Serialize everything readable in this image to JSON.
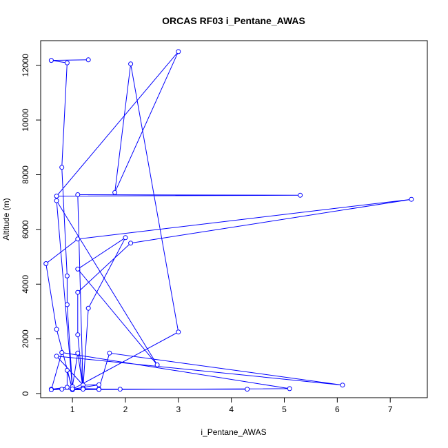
{
  "chart_data": {
    "type": "line",
    "title": "ORCAS RF03 i_Pentane_AWAS",
    "xlabel": "i_Pentane_AWAS",
    "ylabel": "Altitude (m)",
    "xlim": [
      0.4,
      7.7
    ],
    "ylim": [
      -150,
      12900
    ],
    "xticks": [
      1,
      2,
      3,
      4,
      5,
      6,
      7
    ],
    "xtick_labels": [
      "1",
      "2",
      "3",
      "4",
      "5",
      "6",
      "7"
    ],
    "yticks": [
      0,
      2000,
      4000,
      6000,
      8000,
      10000,
      12000
    ],
    "ytick_labels": [
      "0",
      "2000",
      "4000",
      "6000",
      "8000",
      "10000",
      "12000"
    ],
    "grid": false,
    "series": [
      {
        "color": "#0000ff",
        "marker": "open-circle",
        "points": [
          [
            1.3,
            12200
          ],
          [
            0.6,
            12180
          ],
          [
            0.9,
            12090
          ],
          [
            0.8,
            8270
          ],
          [
            0.9,
            4300
          ],
          [
            0.9,
            3250
          ],
          [
            1.0,
            250
          ],
          [
            1.1,
            1480
          ],
          [
            1.2,
            180
          ],
          [
            1.5,
            170
          ],
          [
            1.7,
            1480
          ],
          [
            6.1,
            310
          ],
          [
            0.7,
            1370
          ],
          [
            1.2,
            310
          ],
          [
            1.5,
            320
          ],
          [
            1.0,
            160
          ],
          [
            0.7,
            2350
          ],
          [
            0.5,
            4750
          ],
          [
            1.1,
            5650
          ],
          [
            7.4,
            7100
          ],
          [
            2.1,
            5500
          ],
          [
            1.1,
            3700
          ],
          [
            1.1,
            2150
          ],
          [
            1.2,
            200
          ],
          [
            1.3,
            3120
          ],
          [
            2.0,
            5700
          ],
          [
            1.1,
            4550
          ],
          [
            2.6,
            1050
          ],
          [
            0.7,
            7050
          ],
          [
            1.0,
            160
          ],
          [
            3.0,
            2250
          ],
          [
            2.1,
            12050
          ],
          [
            1.8,
            7350
          ],
          [
            3.0,
            12500
          ],
          [
            0.7,
            7220
          ],
          [
            5.3,
            7250
          ],
          [
            1.1,
            7270
          ],
          [
            1.2,
            160
          ],
          [
            1.9,
            160
          ],
          [
            1.0,
            140
          ],
          [
            0.9,
            850
          ],
          [
            0.9,
            230
          ],
          [
            0.6,
            160
          ],
          [
            0.8,
            160
          ],
          [
            4.3,
            160
          ],
          [
            1.0,
            170
          ],
          [
            0.6,
            140
          ],
          [
            0.8,
            1500
          ],
          [
            5.1,
            180
          ],
          [
            1.5,
            150
          ]
        ]
      }
    ]
  }
}
